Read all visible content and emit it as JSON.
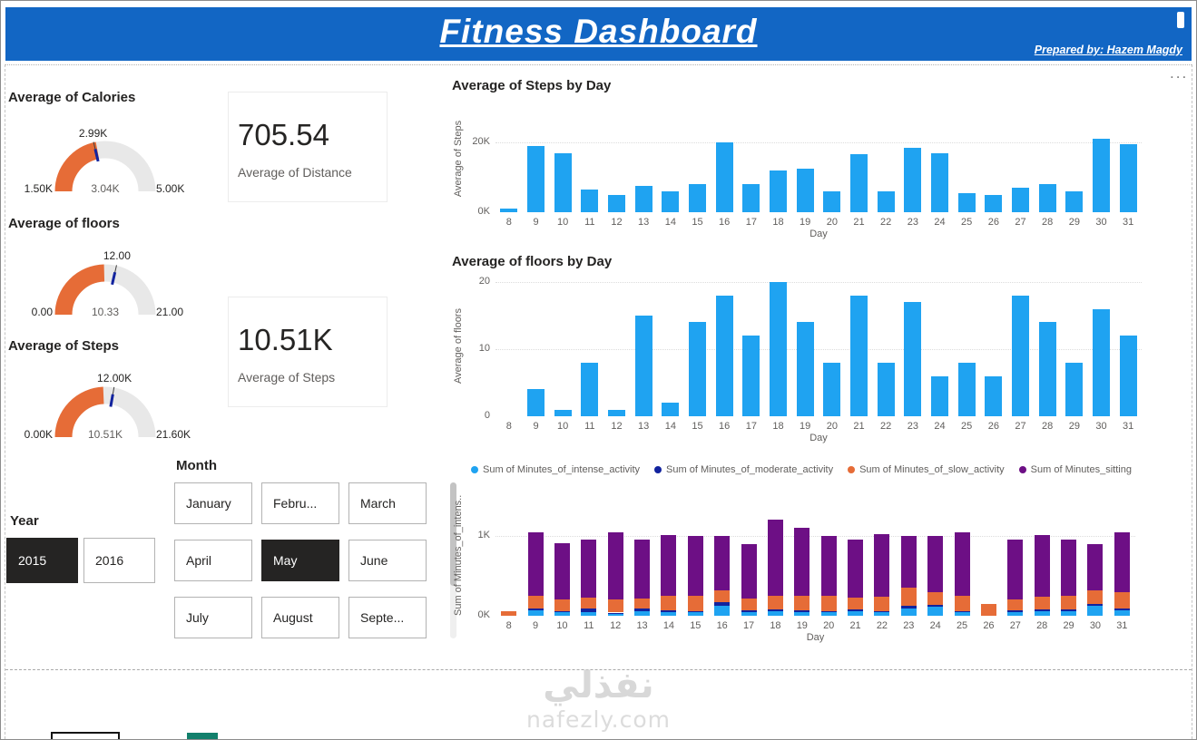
{
  "header": {
    "title": "Fitness Dashboard",
    "credit": "Prepared by: Hazem Magdy"
  },
  "icons": {
    "more_options": "..."
  },
  "colors": {
    "header_blue": "#1266C4",
    "bar_blue": "#1FA3F1",
    "gauge_fill": "#E66C37",
    "gauge_rest": "#E8E8E8",
    "needle_navy": "#12239E",
    "selected_button": "#252423"
  },
  "gauges": [
    {
      "title": "Average of Calories",
      "min": 1500,
      "max": 5000,
      "value": 3040,
      "target": 2990,
      "min_label": "1.50K",
      "max_label": "5.00K",
      "value_label": "3.04K",
      "target_label": "2.99K"
    },
    {
      "title": "Average of floors",
      "min": 0,
      "max": 21,
      "value": 10.33,
      "target": 12,
      "min_label": "0.00",
      "max_label": "21.00",
      "value_label": "10.33",
      "target_label": "12.00"
    },
    {
      "title": "Average of Steps",
      "min": 0,
      "max": 21600,
      "value": 10510,
      "target": 12000,
      "min_label": "0.00K",
      "max_label": "21.60K",
      "value_label": "10.51K",
      "target_label": "12.00K"
    }
  ],
  "cards": [
    {
      "value": "705.54",
      "label": "Average of Distance"
    },
    {
      "value": "10.51K",
      "label": "Average of Steps"
    }
  ],
  "year_slicer": {
    "title": "Year",
    "options": [
      {
        "label": "2015",
        "selected": true
      },
      {
        "label": "2016",
        "selected": false
      }
    ]
  },
  "month_slicer": {
    "title": "Month",
    "options": [
      {
        "label": "January",
        "selected": false
      },
      {
        "label": "Febru...",
        "selected": false
      },
      {
        "label": "March",
        "selected": false
      },
      {
        "label": "April",
        "selected": false
      },
      {
        "label": "May",
        "selected": true
      },
      {
        "label": "June",
        "selected": false
      },
      {
        "label": "July",
        "selected": false
      },
      {
        "label": "August",
        "selected": false
      },
      {
        "label": "Septe...",
        "selected": false
      }
    ]
  },
  "watermark": {
    "line1": "نفذلي",
    "line2": "nafezly.com"
  },
  "chart_data": [
    {
      "type": "bar",
      "title": "Average of Steps by Day",
      "xlabel": "Day",
      "ylabel": "Average of Steps",
      "x": [
        8,
        9,
        10,
        11,
        12,
        13,
        14,
        15,
        16,
        17,
        18,
        19,
        20,
        21,
        22,
        23,
        24,
        25,
        26,
        27,
        28,
        29,
        30,
        31
      ],
      "values": [
        1000,
        19000,
        17000,
        6500,
        5000,
        7500,
        6000,
        8000,
        20000,
        8000,
        12000,
        12500,
        6000,
        16500,
        6000,
        18500,
        17000,
        5500,
        5000,
        7000,
        8000,
        6000,
        21000,
        19500
      ],
      "ylim": [
        0,
        21500
      ],
      "yticks": [
        {
          "v": 0,
          "label": "0K"
        },
        {
          "v": 20000,
          "label": "20K"
        }
      ],
      "bar_color": "#1FA3F1",
      "legend_position": "none",
      "grid": true
    },
    {
      "type": "bar",
      "title": "Average of floors by Day",
      "xlabel": "Day",
      "ylabel": "Average of floors",
      "x": [
        8,
        9,
        10,
        11,
        12,
        13,
        14,
        15,
        16,
        17,
        18,
        19,
        20,
        21,
        22,
        23,
        24,
        25,
        26,
        27,
        28,
        29,
        30,
        31
      ],
      "values": [
        0,
        4,
        1,
        8,
        1,
        15,
        2,
        14,
        18,
        12,
        20,
        14,
        8,
        18,
        8,
        17,
        6,
        8,
        6,
        18,
        14,
        8,
        16,
        12
      ],
      "ylim": [
        0,
        21
      ],
      "yticks": [
        {
          "v": 0,
          "label": "0"
        },
        {
          "v": 10,
          "label": "10"
        },
        {
          "v": 20,
          "label": "20"
        }
      ],
      "bar_color": "#1FA3F1",
      "legend_position": "none",
      "grid": true
    },
    {
      "type": "stacked-bar",
      "title": "",
      "xlabel": "Day",
      "ylabel": "Sum of Minutes_of_intens...",
      "x": [
        8,
        9,
        10,
        11,
        12,
        13,
        14,
        15,
        16,
        17,
        18,
        19,
        20,
        21,
        22,
        23,
        24,
        25,
        26,
        27,
        28,
        29,
        30,
        31
      ],
      "series": [
        {
          "name": "Sum of Minutes_of_intense_activity",
          "color": "#1FA3F1",
          "values": [
            0,
            70,
            40,
            50,
            30,
            60,
            50,
            40,
            130,
            50,
            60,
            50,
            40,
            55,
            45,
            90,
            110,
            45,
            0,
            50,
            60,
            55,
            120,
            70
          ]
        },
        {
          "name": "Sum of Minutes_of_moderate_activity",
          "color": "#12239E",
          "values": [
            0,
            20,
            15,
            40,
            10,
            30,
            20,
            15,
            40,
            20,
            25,
            20,
            15,
            20,
            15,
            30,
            25,
            15,
            0,
            20,
            20,
            20,
            30,
            25
          ]
        },
        {
          "name": "Sum of Minutes_of_slow_activity",
          "color": "#E66C37",
          "values": [
            60,
            160,
            150,
            140,
            160,
            130,
            180,
            200,
            150,
            150,
            170,
            180,
            200,
            150,
            180,
            230,
            160,
            190,
            150,
            140,
            160,
            170,
            170,
            200
          ]
        },
        {
          "name": "Sum of Minutes_sitting",
          "color": "#6D0F85",
          "values": [
            0,
            800,
            700,
            720,
            850,
            730,
            760,
            745,
            680,
            680,
            945,
            850,
            745,
            725,
            780,
            650,
            705,
            800,
            0,
            740,
            770,
            705,
            580,
            755
          ]
        }
      ],
      "ylim": [
        0,
        1300
      ],
      "yticks": [
        {
          "v": 0,
          "label": "0K"
        },
        {
          "v": 1000,
          "label": "1K"
        }
      ],
      "legend_position": "top",
      "grid": true
    }
  ]
}
